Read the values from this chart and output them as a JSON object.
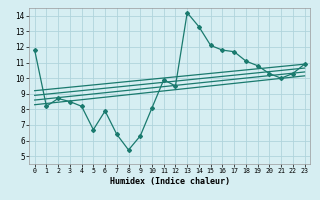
{
  "title": "",
  "xlabel": "Humidex (Indice chaleur)",
  "xlim": [
    -0.5,
    23.5
  ],
  "ylim": [
    4.5,
    14.5
  ],
  "xticks": [
    0,
    1,
    2,
    3,
    4,
    5,
    6,
    7,
    8,
    9,
    10,
    11,
    12,
    13,
    14,
    15,
    16,
    17,
    18,
    19,
    20,
    21,
    22,
    23
  ],
  "yticks": [
    5,
    6,
    7,
    8,
    9,
    10,
    11,
    12,
    13,
    14
  ],
  "bg_color": "#d6eef2",
  "grid_color": "#b0d4dc",
  "line_color": "#1a7a6e",
  "main_x": [
    0,
    1,
    2,
    3,
    4,
    5,
    6,
    7,
    8,
    9,
    10,
    11,
    12,
    13,
    14,
    15,
    16,
    17,
    18,
    19,
    20,
    21,
    22,
    23
  ],
  "main_y": [
    11.8,
    8.2,
    8.7,
    8.5,
    8.2,
    6.7,
    7.9,
    6.4,
    5.4,
    6.3,
    8.1,
    9.9,
    9.5,
    14.2,
    13.3,
    12.1,
    11.8,
    11.7,
    11.1,
    10.8,
    10.3,
    10.0,
    10.3,
    10.9
  ],
  "trend1_x": [
    0,
    23
  ],
  "trend1_y": [
    8.3,
    10.15
  ],
  "trend2_x": [
    0,
    23
  ],
  "trend2_y": [
    8.6,
    10.4
  ],
  "trend3_x": [
    0,
    23
  ],
  "trend3_y": [
    8.9,
    10.65
  ],
  "trend4_x": [
    0,
    23
  ],
  "trend4_y": [
    9.2,
    10.9
  ]
}
